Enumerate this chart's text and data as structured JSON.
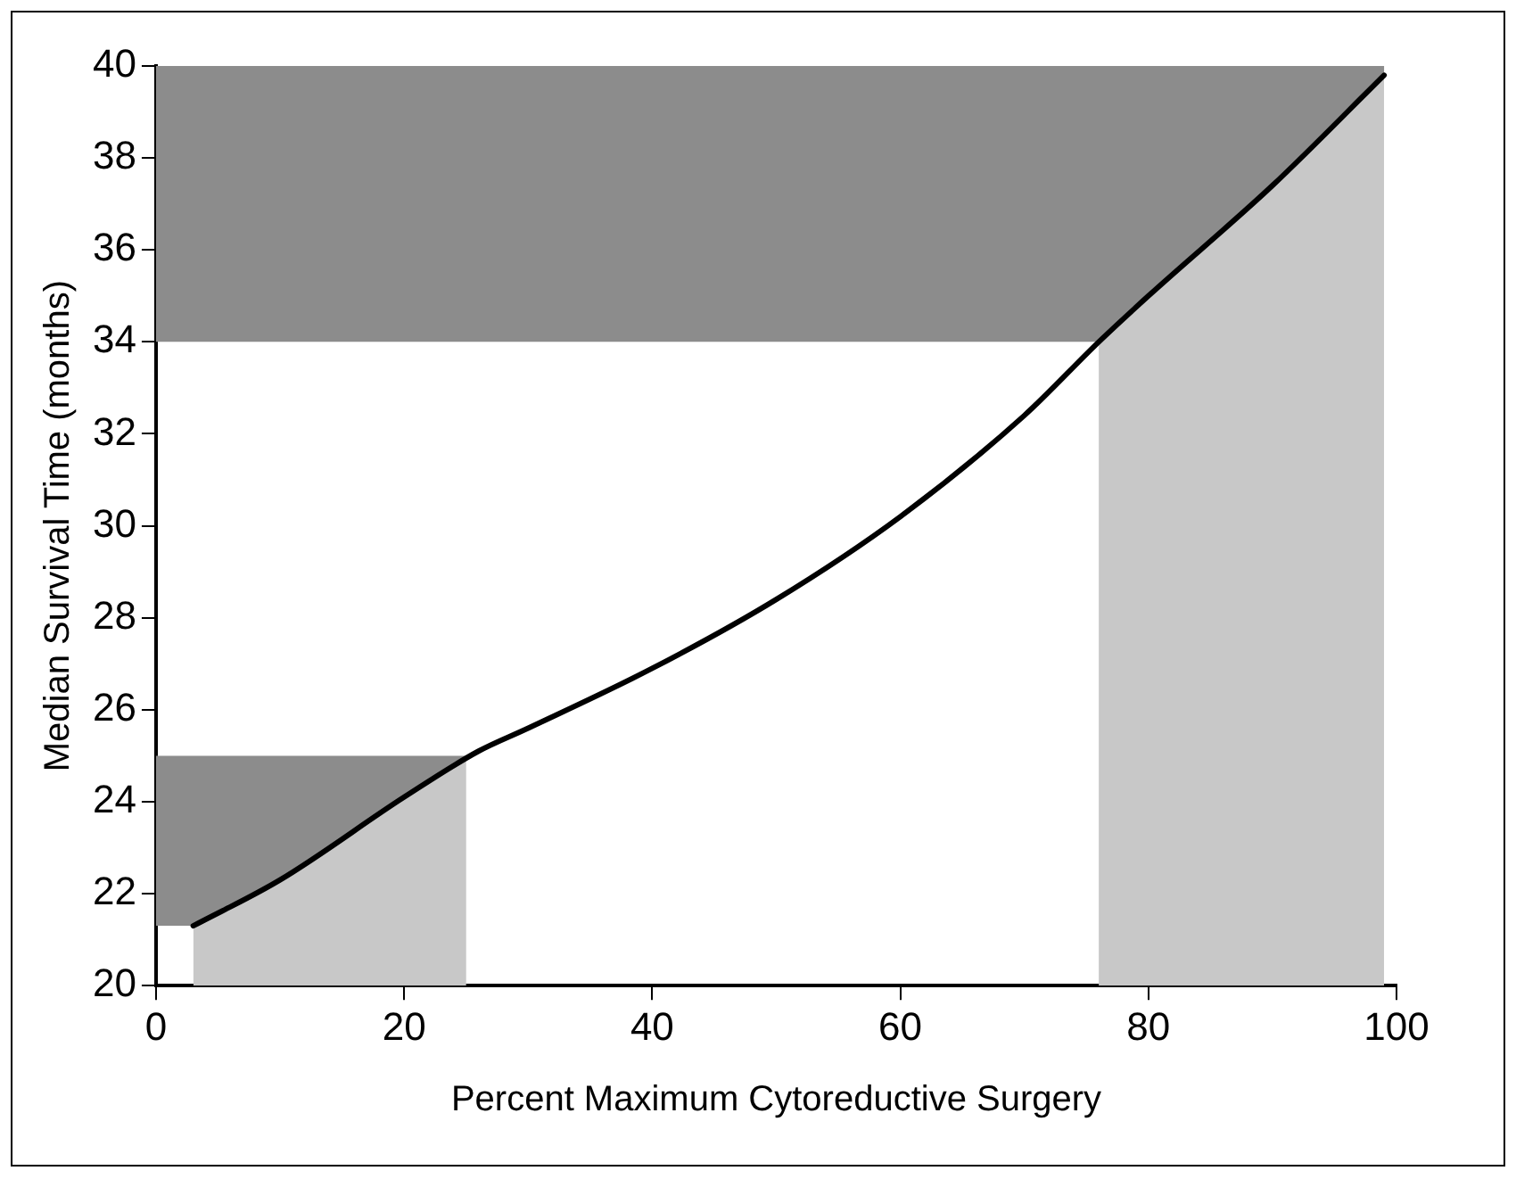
{
  "chart_data": {
    "type": "line",
    "xlabel": "Percent Maximum Cytoreductive Surgery",
    "ylabel": "Median Survival Time (months)",
    "x": [
      3,
      10,
      20,
      26,
      30,
      40,
      50,
      60,
      70,
      76,
      80,
      90,
      99
    ],
    "series": [
      {
        "color": "#000000",
        "values": [
          21.3,
          22.3,
          24.1,
          25.1,
          25.6,
          26.9,
          28.4,
          30.2,
          32.4,
          34,
          35,
          37.4,
          39.8
        ]
      }
    ],
    "xlim": [
      0,
      100
    ],
    "xticks": [
      0,
      20,
      40,
      60,
      80,
      100
    ],
    "ylim": [
      20,
      40
    ],
    "yticks": [
      20,
      22,
      24,
      26,
      28,
      30,
      32,
      34,
      36,
      38,
      40
    ],
    "bands": [
      {
        "axis": "x",
        "from": 3,
        "to": 25,
        "color": "#c8c8c8"
      },
      {
        "axis": "x",
        "from": 76,
        "to": 99,
        "color": "#c8c8c8"
      },
      {
        "axis": "y",
        "from": 21.3,
        "to": 25,
        "color": "#8c8c8c"
      },
      {
        "axis": "y",
        "from": 34,
        "to": 40,
        "color": "#8c8c8c"
      }
    ],
    "grid": false,
    "legend": false,
    "marker": "none",
    "line_style": "solid"
  }
}
